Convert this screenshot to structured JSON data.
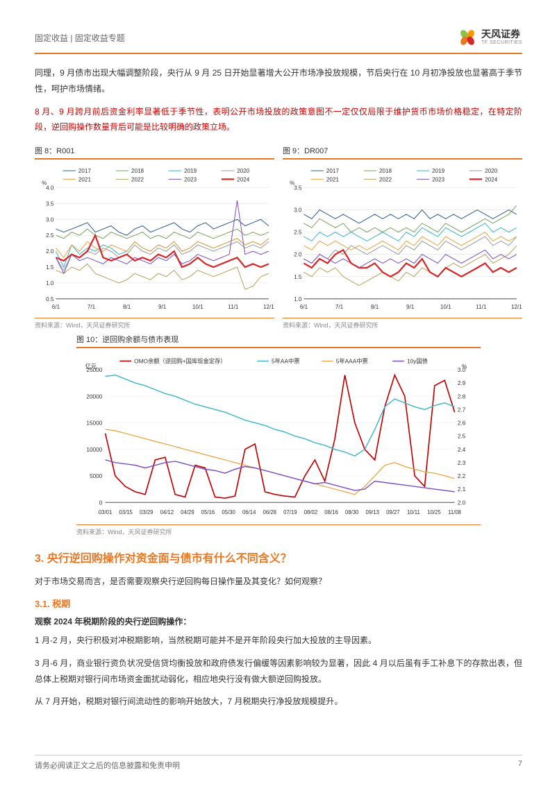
{
  "header": {
    "breadcrumb": "固定收益 | 固定收益专题",
    "logo_cn": "天风证券",
    "logo_en": "TF SECURITIES",
    "petal_colors": [
      "#8bc34a",
      "#ff9800",
      "#f44336",
      "#e87722"
    ]
  },
  "para1": "同理，9 月债市出现大幅调整阶段，央行从 9 月 25 日开始显著增大公开市场净投放规模，节后央行在 10 月初净投放也显著高于季节性，呵护市场情绪。",
  "para2": "8 月、9 月跨月前后资金利率显著低于季节性，表明公开市场投放的政策意图不一定仅仅局限于维护货币市场价格稳定，在特定阶段，逆回购操作数量背后可能是比较明确的政策立场。",
  "chart8": {
    "title": "图 8：R001",
    "source": "资料来源：Wind，天风证券研究所",
    "y_unit": "%",
    "ylim": [
      0.5,
      4.0
    ],
    "ytick_step": 0.5,
    "x_labels": [
      "6/1",
      "7/1",
      "8/1",
      "9/1",
      "10/1",
      "11/1",
      "12/1"
    ],
    "series": [
      {
        "name": "2017",
        "color": "#2e5c8a",
        "width": 1
      },
      {
        "name": "2018",
        "color": "#7aa25c",
        "width": 1
      },
      {
        "name": "2019",
        "color": "#3cb4c8",
        "width": 1
      },
      {
        "name": "2020",
        "color": "#999999",
        "width": 1
      },
      {
        "name": "2021",
        "color": "#e8a23c",
        "width": 1
      },
      {
        "name": "2022",
        "color": "#b8a25c",
        "width": 1
      },
      {
        "name": "2023",
        "color": "#7b4fc4",
        "width": 1
      },
      {
        "name": "2024",
        "color": "#d62728",
        "width": 2.2
      }
    ],
    "data": {
      "2017": [
        2.7,
        2.6,
        2.7,
        2.8,
        2.9,
        2.6,
        2.7,
        2.8,
        2.6,
        2.5,
        2.7,
        2.8,
        2.6,
        2.7,
        2.8,
        2.9,
        2.7,
        2.6,
        2.8,
        2.9,
        2.7,
        2.8,
        2.9,
        3.0,
        2.8,
        2.9,
        3.0,
        2.8
      ],
      "2018": [
        2.5,
        2.4,
        2.6,
        2.5,
        2.7,
        2.5,
        2.4,
        2.6,
        2.5,
        2.4,
        2.5,
        2.6,
        2.4,
        2.5,
        2.4,
        2.6,
        2.5,
        2.4,
        2.6,
        2.5,
        2.4,
        2.5,
        2.6,
        2.7,
        2.5,
        2.6,
        2.5,
        2.6
      ],
      "2019": [
        2.0,
        1.5,
        2.2,
        1.9,
        2.1,
        2.0,
        2.2,
        2.1,
        1.9,
        2.0,
        2.3,
        2.1,
        2.0,
        2.2,
        2.1,
        2.3,
        2.0,
        2.1,
        2.3,
        2.2,
        2.1,
        2.2,
        2.3,
        2.4,
        2.2,
        2.3,
        2.2,
        2.4
      ],
      "2020": [
        1.8,
        1.4,
        1.9,
        1.8,
        2.0,
        1.9,
        2.1,
        2.0,
        1.8,
        1.9,
        2.2,
        2.0,
        1.9,
        2.1,
        2.0,
        2.2,
        1.9,
        2.0,
        2.2,
        2.1,
        2.0,
        2.1,
        2.2,
        2.3,
        2.1,
        2.2,
        2.1,
        2.3
      ],
      "2021": [
        2.1,
        1.8,
        2.2,
        2.0,
        2.3,
        2.1,
        2.0,
        2.2,
        2.1,
        2.0,
        2.3,
        2.1,
        2.0,
        2.2,
        2.1,
        2.3,
        2.0,
        2.1,
        2.3,
        2.2,
        2.1,
        2.2,
        2.3,
        2.4,
        2.2,
        2.3,
        2.2,
        2.4
      ],
      "2022": [
        1.4,
        1.3,
        1.5,
        1.4,
        1.6,
        1.3,
        1.2,
        1.1,
        1.0,
        1.1,
        1.3,
        1.2,
        1.1,
        1.3,
        1.2,
        1.4,
        1.1,
        1.2,
        1.4,
        1.3,
        1.2,
        1.3,
        1.4,
        1.5,
        0.8,
        0.9,
        1.2,
        1.3
      ],
      "2023": [
        1.8,
        1.3,
        1.9,
        1.7,
        1.8,
        1.7,
        1.6,
        1.8,
        1.7,
        1.6,
        1.8,
        1.7,
        1.6,
        1.8,
        1.7,
        1.9,
        1.6,
        1.7,
        1.9,
        1.8,
        1.7,
        1.8,
        1.9,
        3.6,
        1.9,
        2.0,
        1.9,
        2.0
      ],
      "2024": [
        1.8,
        1.7,
        1.9,
        1.8,
        2.0,
        2.5,
        1.8,
        1.7,
        1.8,
        1.9,
        1.7,
        1.8,
        1.7,
        1.9,
        1.8,
        2.0,
        1.5,
        1.6,
        1.8,
        1.6,
        1.5,
        1.6,
        1.7,
        1.8,
        1.5,
        1.6,
        1.5,
        1.6
      ]
    }
  },
  "chart9": {
    "title": "图 9：DR007",
    "source": "资料来源：Wind，天风证券研究所",
    "y_unit": "%",
    "ylim": [
      1.0,
      3.5
    ],
    "ytick_step": 0.5,
    "x_labels": [
      "6/1",
      "7/1",
      "8/1",
      "9/1",
      "10/1",
      "11/1",
      "12/1"
    ],
    "series": [
      {
        "name": "2017",
        "color": "#2e5c8a",
        "width": 1
      },
      {
        "name": "2018",
        "color": "#7aa25c",
        "width": 1
      },
      {
        "name": "2019",
        "color": "#3cb4c8",
        "width": 1
      },
      {
        "name": "2020",
        "color": "#999999",
        "width": 1
      },
      {
        "name": "2021",
        "color": "#e8a23c",
        "width": 1
      },
      {
        "name": "2022",
        "color": "#b8a25c",
        "width": 1
      },
      {
        "name": "2023",
        "color": "#7b4fc4",
        "width": 1
      },
      {
        "name": "2024",
        "color": "#d62728",
        "width": 2.2
      }
    ],
    "data": {
      "2017": [
        2.9,
        2.8,
        3.0,
        2.9,
        2.8,
        2.9,
        2.8,
        2.7,
        2.8,
        2.9,
        2.8,
        2.9,
        2.8,
        2.9,
        2.8,
        3.0,
        2.8,
        2.9,
        2.8,
        2.9,
        2.8,
        2.9,
        3.0,
        2.9,
        2.8,
        2.9,
        3.0,
        2.9
      ],
      "2018": [
        2.7,
        2.6,
        2.8,
        2.7,
        2.6,
        2.7,
        2.5,
        2.6,
        2.5,
        2.6,
        2.5,
        2.6,
        2.5,
        2.6,
        2.5,
        2.7,
        2.6,
        2.5,
        2.7,
        2.6,
        2.5,
        2.6,
        2.7,
        2.8,
        2.7,
        2.8,
        2.9,
        3.1
      ],
      "2019": [
        2.4,
        2.3,
        2.5,
        2.4,
        2.5,
        2.4,
        2.5,
        2.4,
        2.3,
        2.4,
        2.5,
        2.4,
        2.3,
        2.5,
        2.4,
        2.6,
        2.5,
        2.4,
        2.6,
        2.5,
        2.4,
        2.5,
        2.6,
        2.7,
        2.5,
        2.6,
        2.5,
        2.6
      ],
      "2020": [
        1.9,
        1.8,
        2.0,
        1.9,
        2.1,
        2.0,
        2.2,
        2.1,
        2.0,
        2.1,
        2.2,
        2.1,
        2.0,
        2.2,
        2.1,
        2.3,
        2.2,
        2.1,
        2.3,
        2.2,
        2.1,
        2.2,
        2.3,
        2.4,
        2.2,
        2.3,
        2.2,
        2.4
      ],
      "2021": [
        2.2,
        2.1,
        2.3,
        2.2,
        2.3,
        2.2,
        2.1,
        2.2,
        2.1,
        2.2,
        2.3,
        2.2,
        2.1,
        2.3,
        2.2,
        2.4,
        2.3,
        2.2,
        2.4,
        2.3,
        2.2,
        2.3,
        2.4,
        2.5,
        2.3,
        2.4,
        2.3,
        2.4
      ],
      "2022": [
        1.6,
        1.5,
        1.7,
        1.6,
        1.7,
        1.5,
        1.4,
        1.3,
        1.4,
        1.5,
        1.6,
        1.5,
        1.4,
        1.6,
        1.5,
        1.7,
        1.6,
        1.5,
        1.7,
        1.8,
        1.7,
        1.8,
        1.9,
        2.0,
        1.8,
        1.9,
        2.0,
        2.2
      ],
      "2023": [
        1.9,
        1.8,
        2.0,
        1.9,
        1.8,
        1.9,
        1.8,
        1.7,
        1.8,
        1.9,
        1.8,
        1.9,
        1.8,
        1.9,
        1.8,
        2.0,
        1.9,
        1.8,
        2.0,
        1.9,
        1.8,
        1.9,
        2.0,
        2.1,
        1.9,
        2.0,
        1.9,
        2.0
      ],
      "2024": [
        1.8,
        1.7,
        1.9,
        1.8,
        2.0,
        2.1,
        1.8,
        1.7,
        1.7,
        1.8,
        1.6,
        1.5,
        1.6,
        1.8,
        1.7,
        1.9,
        1.6,
        1.5,
        1.7,
        1.6,
        1.5,
        1.6,
        1.7,
        1.8,
        1.6,
        1.7,
        1.6,
        1.7
      ]
    }
  },
  "chart10": {
    "title": "图 10：逆回购余额与债市表现",
    "source": "资料来源：Wind，天风证券研究所",
    "y_left_unit": "亿元",
    "y_right_unit": "%",
    "y_left_lim": [
      0,
      25000
    ],
    "y_left_step": 5000,
    "y_right_lim": [
      2.0,
      3.0
    ],
    "y_right_step": 0.1,
    "x_labels": [
      "03/01",
      "03/15",
      "03/29",
      "04/12",
      "04/29",
      "05/16",
      "05/30",
      "06/14",
      "06/28",
      "07/19",
      "08/02",
      "08/16",
      "08/30",
      "09/13",
      "09/27",
      "10/11",
      "10/25",
      "11/08"
    ],
    "series": [
      {
        "name": "OMO余额（逆回购+国库现金定存）",
        "color": "#c00000",
        "width": 1.6,
        "axis": "left"
      },
      {
        "name": "5年AA中票",
        "color": "#3cb4c8",
        "width": 1.4,
        "axis": "right"
      },
      {
        "name": "5年AAA中票",
        "color": "#e8a23c",
        "width": 1.2,
        "axis": "right"
      },
      {
        "name": "10y国债",
        "color": "#7b4fc4",
        "width": 1.4,
        "axis": "right"
      }
    ],
    "data": {
      "OMO": [
        13000,
        5000,
        3000,
        2000,
        1500,
        8000,
        8500,
        1500,
        1000,
        7000,
        6500,
        1000,
        800,
        1200,
        10000,
        11000,
        2000,
        1500,
        1200,
        1000,
        5000,
        8000,
        4000,
        12000,
        24000,
        15000,
        10000,
        8000,
        18000,
        24000,
        20000,
        5000,
        3000,
        22000,
        23000,
        17000
      ],
      "AA5": [
        2.95,
        2.96,
        2.93,
        2.9,
        2.88,
        2.85,
        2.82,
        2.8,
        2.77,
        2.74,
        2.72,
        2.7,
        2.68,
        2.65,
        2.62,
        2.6,
        2.58,
        2.55,
        2.53,
        2.5,
        2.48,
        2.45,
        2.43,
        2.4,
        2.38,
        2.35,
        2.4,
        2.55,
        2.72,
        2.78,
        2.75,
        2.72,
        2.7,
        2.73,
        2.75,
        2.72
      ],
      "AAA5": [
        2.55,
        2.54,
        2.52,
        2.5,
        2.48,
        2.46,
        2.44,
        2.42,
        2.4,
        2.38,
        2.36,
        2.34,
        2.32,
        2.3,
        2.28,
        2.26,
        2.24,
        2.22,
        2.2,
        2.18,
        2.16,
        2.14,
        2.12,
        2.1,
        2.08,
        2.06,
        2.12,
        2.2,
        2.28,
        2.3,
        2.27,
        2.25,
        2.23,
        2.22,
        2.2,
        2.18
      ],
      "GB10": [
        2.32,
        2.3,
        2.29,
        2.28,
        2.26,
        2.28,
        2.3,
        2.31,
        2.29,
        2.27,
        2.25,
        2.24,
        2.22,
        2.25,
        2.27,
        2.26,
        2.24,
        2.22,
        2.2,
        2.18,
        2.16,
        2.14,
        2.15,
        2.13,
        2.11,
        2.09,
        2.1,
        2.16,
        2.15,
        2.14,
        2.13,
        2.12,
        2.11,
        2.1,
        2.09,
        2.08
      ]
    }
  },
  "section3_title": "3. 央行逆回购操作对资金面与债市有什么不同含义？",
  "section3_intro": "对于市场交易而言，是否需要观察央行逆回购每日操作量及其变化？如何观察？",
  "section31_title": "3.1. 税期",
  "section31_bold": "观察 2024 年税期阶段的央行逆回购操作：",
  "section31_p1": "1 月-2 月，央行积极对冲税期影响，当然税期可能并不是开年阶段央行加大投放的主导因素。",
  "section31_p2": "3 月-6 月，商业银行资负状况受信贷均衡投放和政府债发行偏缓等因素影响较为显著，因此 4 月以后虽有手工补息下的存款出表，但总体上税期对银行间市场资金面扰动弱化，相应地央行没有做大额逆回购投放。",
  "section31_p3": "从 7 月开始，税期对银行间流动性的影响开始放大，7 月税期央行净投放规模提升。",
  "footer": {
    "disclaimer": "请务必阅读正文之后的信息披露和免责申明",
    "page": "7"
  }
}
